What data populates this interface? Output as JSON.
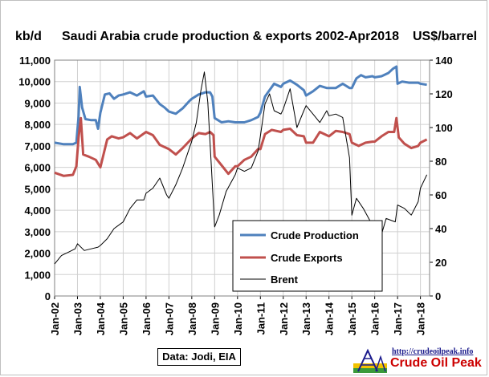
{
  "chart_data": {
    "type": "line",
    "title": "Saudi Arabia crude production & exports 2002-Apr2018",
    "ylabel_left": "kb/d",
    "ylabel_right": "US$/barrel",
    "ylim_left": [
      0,
      11000
    ],
    "ylim_right": [
      0,
      140
    ],
    "yticks_left": [
      "0",
      "1,000",
      "2,000",
      "3,000",
      "4,000",
      "5,000",
      "6,000",
      "7,000",
      "8,000",
      "9,000",
      "10,000",
      "11,000"
    ],
    "yticks_right": [
      "0",
      "20",
      "40",
      "60",
      "80",
      "100",
      "120",
      "140"
    ],
    "xticks": [
      "Jan-02",
      "Jan-03",
      "Jan-04",
      "Jan-05",
      "Jan-06",
      "Jan-07",
      "Jan-08",
      "Jan-09",
      "Jan-10",
      "Jan-11",
      "Jan-12",
      "Jan-13",
      "Jan-14",
      "Jan-15",
      "Jan-16",
      "Jan-17",
      "Jan-18"
    ],
    "grid": true,
    "legend_position": "bottom-right-inside",
    "source": "Data: Jodi, EIA",
    "series": [
      {
        "name": "Crude Production",
        "axis": "left",
        "color": "#4f81bd",
        "x": [
          2002.0,
          2002.4,
          2002.8,
          2002.95,
          2003.05,
          2003.1,
          2003.2,
          2003.35,
          2003.6,
          2003.8,
          2003.9,
          2004.0,
          2004.2,
          2004.4,
          2004.6,
          2004.8,
          2005.0,
          2005.3,
          2005.6,
          2005.9,
          2006.0,
          2006.3,
          2006.6,
          2006.8,
          2007.0,
          2007.3,
          2007.6,
          2007.9,
          2008.0,
          2008.3,
          2008.6,
          2008.8,
          2008.9,
          2009.0,
          2009.3,
          2009.6,
          2009.9,
          2010.0,
          2010.3,
          2010.6,
          2010.9,
          2011.0,
          2011.2,
          2011.4,
          2011.6,
          2011.9,
          2012.0,
          2012.3,
          2012.6,
          2012.9,
          2013.0,
          2013.3,
          2013.6,
          2013.9,
          2014.0,
          2014.3,
          2014.6,
          2014.9,
          2015.0,
          2015.2,
          2015.4,
          2015.6,
          2015.9,
          2016.0,
          2016.3,
          2016.6,
          2016.8,
          2016.95,
          2017.0,
          2017.2,
          2017.5,
          2017.9,
          2018.0,
          2018.28
        ],
        "y": [
          7150,
          7080,
          7080,
          7150,
          8400,
          9750,
          8800,
          8250,
          8200,
          8200,
          7800,
          8550,
          9400,
          9450,
          9200,
          9350,
          9400,
          9500,
          9350,
          9550,
          9300,
          9350,
          8950,
          8800,
          8600,
          8500,
          8750,
          9100,
          9200,
          9400,
          9500,
          9500,
          9300,
          8300,
          8100,
          8150,
          8100,
          8100,
          8100,
          8200,
          8350,
          8550,
          9300,
          9600,
          9900,
          9750,
          9900,
          10050,
          9850,
          9600,
          9350,
          9550,
          9800,
          9700,
          9700,
          9700,
          9900,
          9700,
          9700,
          10150,
          10300,
          10200,
          10250,
          10200,
          10250,
          10400,
          10600,
          10700,
          9900,
          10000,
          9950,
          9950,
          9900,
          9850
        ]
      },
      {
        "name": "Crude Exports",
        "axis": "left",
        "color": "#c0504d",
        "x": [
          2002.0,
          2002.4,
          2002.8,
          2002.95,
          2003.05,
          2003.15,
          2003.25,
          2003.5,
          2003.8,
          2004.0,
          2004.3,
          2004.5,
          2004.8,
          2005.0,
          2005.3,
          2005.6,
          2006.0,
          2006.3,
          2006.6,
          2007.0,
          2007.3,
          2007.6,
          2008.0,
          2008.3,
          2008.6,
          2008.8,
          2008.95,
          2009.0,
          2009.3,
          2009.6,
          2009.9,
          2010.0,
          2010.3,
          2010.6,
          2010.9,
          2011.0,
          2011.2,
          2011.5,
          2011.9,
          2012.0,
          2012.3,
          2012.6,
          2012.9,
          2013.0,
          2013.3,
          2013.6,
          2014.0,
          2014.3,
          2014.6,
          2014.9,
          2015.0,
          2015.3,
          2015.6,
          2015.9,
          2016.0,
          2016.3,
          2016.6,
          2016.85,
          2016.95,
          2017.05,
          2017.3,
          2017.6,
          2017.9,
          2018.0,
          2018.28
        ],
        "y": [
          5750,
          5600,
          5650,
          6050,
          7400,
          8300,
          6600,
          6500,
          6350,
          6000,
          7300,
          7450,
          7350,
          7400,
          7600,
          7350,
          7650,
          7500,
          7050,
          6850,
          6600,
          6900,
          7350,
          7600,
          7550,
          7650,
          7500,
          6500,
          6100,
          5700,
          6050,
          6050,
          6350,
          6500,
          6850,
          6850,
          7550,
          7750,
          7650,
          7750,
          7800,
          7500,
          7450,
          7150,
          7150,
          7650,
          7450,
          7700,
          7650,
          7550,
          7150,
          7000,
          7150,
          7200,
          7200,
          7450,
          7650,
          7650,
          8300,
          7400,
          7100,
          6900,
          7000,
          7150,
          7300
        ]
      },
      {
        "name": "Brent",
        "axis": "right",
        "color": "#000000",
        "x": [
          2002.0,
          2002.3,
          2002.6,
          2002.9,
          2003.0,
          2003.3,
          2003.6,
          2003.9,
          2004.0,
          2004.3,
          2004.6,
          2004.9,
          2005.0,
          2005.3,
          2005.6,
          2005.9,
          2006.0,
          2006.3,
          2006.6,
          2006.9,
          2007.0,
          2007.3,
          2007.6,
          2007.9,
          2008.0,
          2008.2,
          2008.4,
          2008.55,
          2008.7,
          2008.85,
          2009.0,
          2009.2,
          2009.5,
          2009.9,
          2010.0,
          2010.3,
          2010.6,
          2010.9,
          2011.0,
          2011.2,
          2011.4,
          2011.6,
          2011.9,
          2012.0,
          2012.3,
          2012.6,
          2012.9,
          2013.0,
          2013.3,
          2013.6,
          2013.9,
          2014.0,
          2014.3,
          2014.6,
          2014.9,
          2015.0,
          2015.2,
          2015.5,
          2015.9,
          2016.0,
          2016.2,
          2016.5,
          2016.9,
          2017.0,
          2017.3,
          2017.6,
          2017.9,
          2018.0,
          2018.28
        ],
        "y": [
          19,
          24,
          26,
          28,
          31,
          27,
          28,
          29,
          30,
          34,
          40,
          43,
          44,
          52,
          57,
          57,
          61,
          64,
          70,
          60,
          58,
          66,
          76,
          88,
          92,
          103,
          122,
          133,
          115,
          78,
          41,
          48,
          62,
          72,
          76,
          74,
          76,
          86,
          95,
          114,
          120,
          110,
          108,
          111,
          123,
          100,
          110,
          113,
          108,
          103,
          110,
          107,
          108,
          106,
          82,
          48,
          58,
          52,
          42,
          30,
          32,
          46,
          44,
          54,
          52,
          48,
          56,
          64,
          72
        ]
      }
    ]
  }
}
